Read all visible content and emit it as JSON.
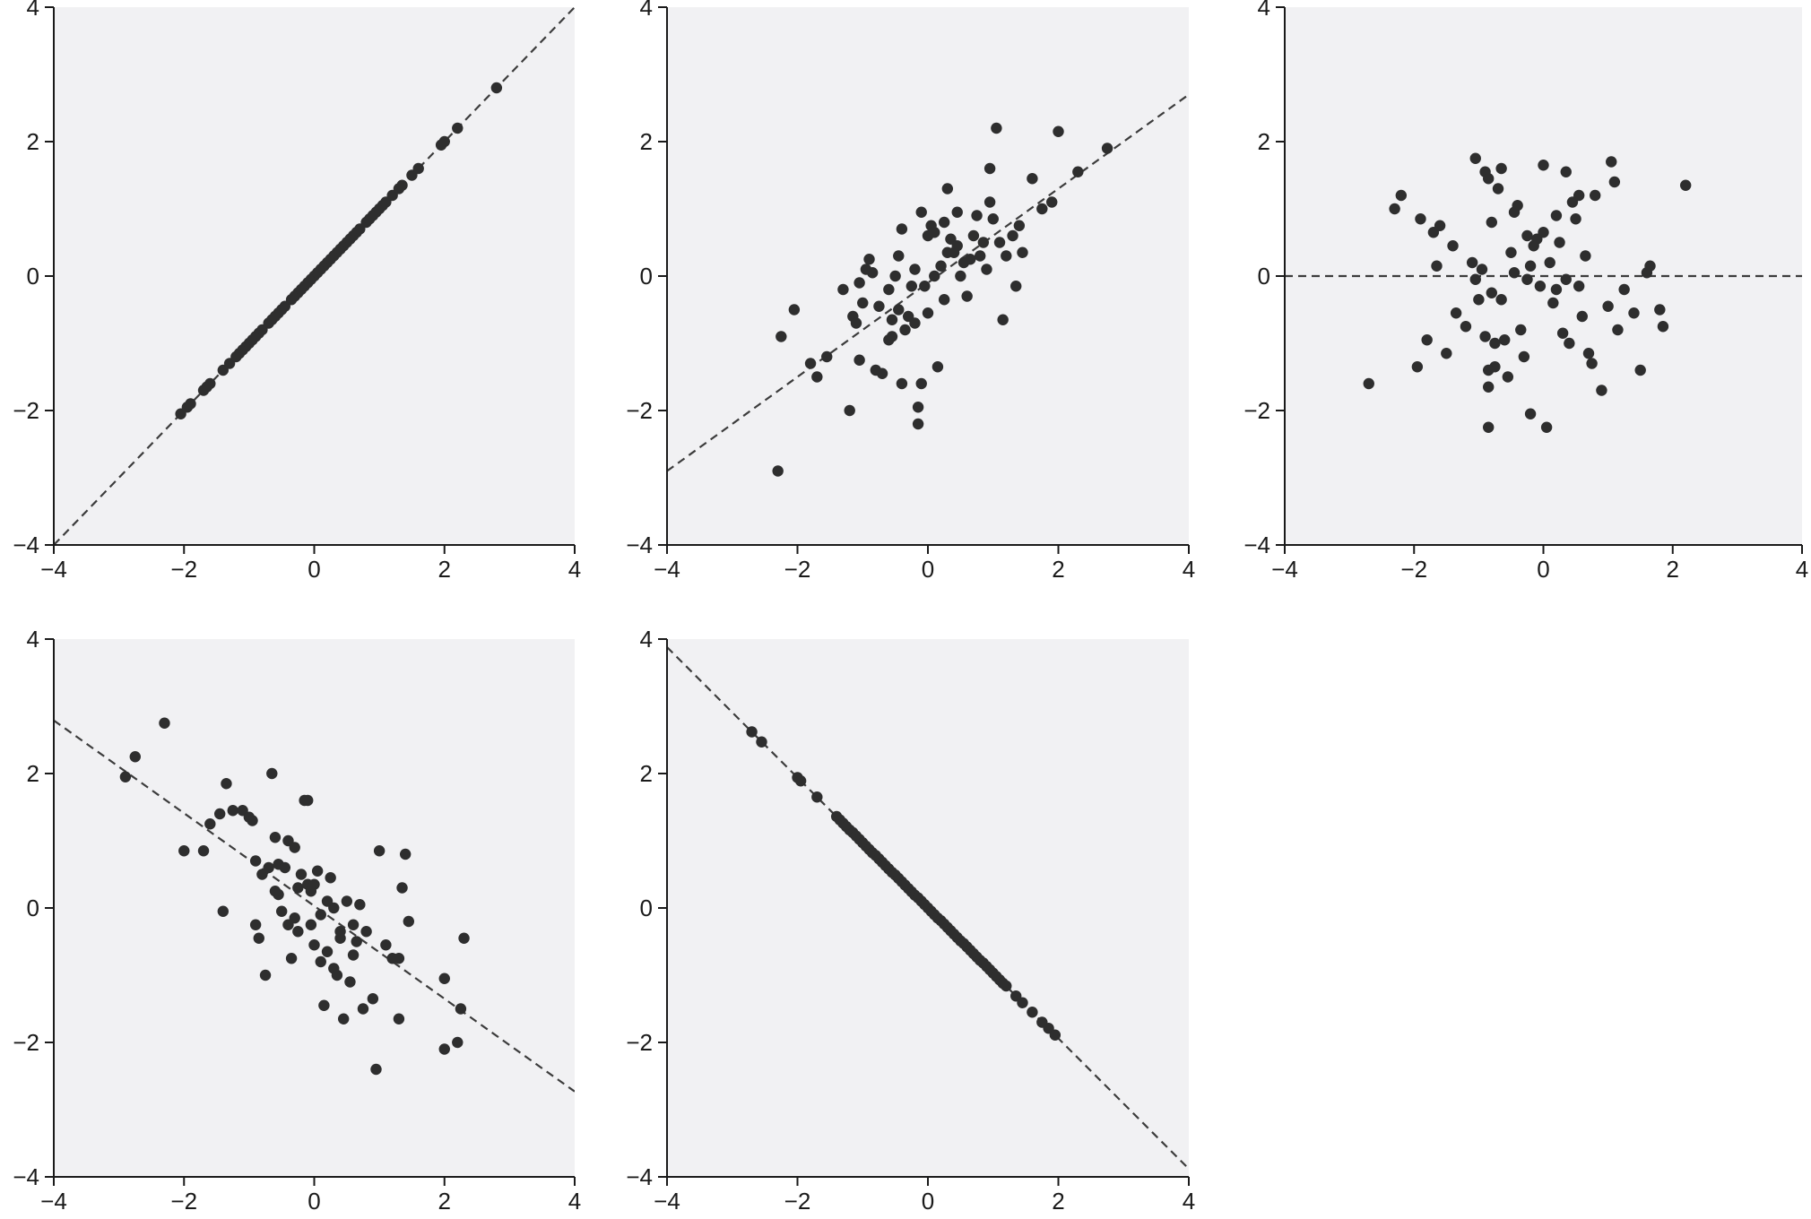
{
  "figure": {
    "background_color": "#ffffff",
    "panel_color": "#f1f1f3",
    "point_color": "#2e2e2e",
    "line_color": "#3c3c3c",
    "axis_color": "#1a1a1a"
  },
  "chart_data": [
    {
      "type": "scatter",
      "title": "",
      "xlabel": "",
      "ylabel": "",
      "xlim": [
        -4,
        4
      ],
      "ylim": [
        -4,
        4
      ],
      "xticks": [
        "−4",
        "−2",
        "0",
        "2",
        "4"
      ],
      "yticks": [
        "−4",
        "−2",
        "0",
        "2",
        "4"
      ],
      "grid": false,
      "fit_line": {
        "slope": 1.0,
        "intercept": 0.0,
        "style": "dashed"
      },
      "x": [
        -2.05,
        -1.95,
        -1.9,
        -1.7,
        -1.65,
        -1.6,
        -1.4,
        -1.3,
        -1.2,
        -1.15,
        -1.1,
        -1.05,
        -1.0,
        -0.95,
        -0.9,
        -0.85,
        -0.8,
        -0.7,
        -0.65,
        -0.6,
        -0.55,
        -0.5,
        -0.45,
        -0.35,
        -0.3,
        -0.25,
        -0.2,
        -0.15,
        -0.1,
        -0.05,
        0.0,
        0.05,
        0.1,
        0.15,
        0.2,
        0.25,
        0.3,
        0.35,
        0.4,
        0.45,
        0.5,
        0.55,
        0.6,
        0.65,
        0.7,
        0.8,
        0.85,
        0.9,
        0.95,
        1.0,
        1.05,
        1.1,
        1.2,
        1.3,
        1.35,
        1.5,
        1.6,
        1.95,
        2.0,
        2.2,
        2.8
      ],
      "y": [
        -2.05,
        -1.95,
        -1.9,
        -1.7,
        -1.65,
        -1.6,
        -1.4,
        -1.3,
        -1.2,
        -1.15,
        -1.1,
        -1.05,
        -1.0,
        -0.95,
        -0.9,
        -0.85,
        -0.8,
        -0.7,
        -0.65,
        -0.6,
        -0.55,
        -0.5,
        -0.45,
        -0.35,
        -0.3,
        -0.25,
        -0.2,
        -0.15,
        -0.1,
        -0.05,
        0.0,
        0.05,
        0.1,
        0.15,
        0.2,
        0.25,
        0.3,
        0.35,
        0.4,
        0.45,
        0.5,
        0.55,
        0.6,
        0.65,
        0.7,
        0.8,
        0.85,
        0.9,
        0.95,
        1.0,
        1.05,
        1.1,
        1.2,
        1.3,
        1.35,
        1.5,
        1.6,
        1.95,
        2.0,
        2.2,
        2.8
      ]
    },
    {
      "type": "scatter",
      "title": "",
      "xlabel": "",
      "ylabel": "",
      "xlim": [
        -4,
        4
      ],
      "ylim": [
        -4,
        4
      ],
      "xticks": [
        "−4",
        "−2",
        "0",
        "2",
        "4"
      ],
      "yticks": [
        "−4",
        "−2",
        "0",
        "2",
        "4"
      ],
      "grid": false,
      "fit_line": {
        "slope": 0.7,
        "intercept": -0.1,
        "style": "dashed"
      },
      "x": [
        -2.3,
        -2.25,
        -2.05,
        -1.8,
        -1.7,
        -1.55,
        -1.3,
        -1.2,
        -1.15,
        -1.1,
        -1.05,
        -1.0,
        -0.95,
        -0.9,
        -0.8,
        -0.75,
        -0.7,
        -0.6,
        -0.55,
        -0.55,
        -0.5,
        -0.45,
        -0.4,
        -0.4,
        -0.35,
        -0.3,
        -0.25,
        -0.2,
        -0.15,
        -0.15,
        -0.1,
        -0.1,
        -0.05,
        0.0,
        0.0,
        0.05,
        0.1,
        0.15,
        0.2,
        0.25,
        0.3,
        0.3,
        0.35,
        0.4,
        0.45,
        0.5,
        0.55,
        0.6,
        0.7,
        0.75,
        0.8,
        0.85,
        0.9,
        0.95,
        1.0,
        1.05,
        1.1,
        1.15,
        1.2,
        1.3,
        1.35,
        1.45,
        1.6,
        1.75,
        1.9,
        2.0,
        2.3,
        2.75,
        -0.6,
        -0.2,
        0.1,
        0.45,
        0.95,
        -1.05,
        0.65,
        1.4,
        -0.45,
        -0.85,
        0.25
      ],
      "y": [
        -2.9,
        -0.9,
        -0.5,
        -1.3,
        -1.5,
        -1.2,
        -0.2,
        -2.0,
        -0.6,
        -0.7,
        -1.25,
        -0.4,
        0.1,
        0.25,
        -1.4,
        -0.45,
        -1.45,
        -0.2,
        -0.65,
        -0.9,
        0.0,
        -0.5,
        -1.6,
        0.7,
        -0.8,
        -0.6,
        -0.15,
        -0.7,
        -2.2,
        -1.95,
        -1.6,
        0.95,
        -0.15,
        0.6,
        -0.55,
        0.75,
        0.0,
        -1.35,
        0.15,
        0.8,
        0.35,
        1.3,
        0.55,
        0.35,
        0.45,
        0.0,
        0.2,
        -0.3,
        0.6,
        0.9,
        0.3,
        0.5,
        0.1,
        1.6,
        0.85,
        2.2,
        0.5,
        -0.65,
        0.3,
        0.6,
        -0.15,
        0.35,
        1.45,
        1.0,
        1.1,
        2.15,
        1.55,
        1.9,
        -0.95,
        0.1,
        0.65,
        0.95,
        1.1,
        -0.1,
        0.25,
        0.75,
        0.3,
        0.05,
        -0.35
      ]
    },
    {
      "type": "scatter",
      "title": "",
      "xlabel": "",
      "ylabel": "",
      "xlim": [
        -4,
        4
      ],
      "ylim": [
        -4,
        4
      ],
      "xticks": [
        "−4",
        "−2",
        "0",
        "2",
        "4"
      ],
      "yticks": [
        "−4",
        "−2",
        "0",
        "2",
        "4"
      ],
      "grid": false,
      "fit_line": {
        "slope": 0.0,
        "intercept": 0.0,
        "style": "dashed"
      },
      "x": [
        -2.7,
        -2.3,
        -2.2,
        -1.95,
        -1.9,
        -1.8,
        -1.7,
        -1.65,
        -1.6,
        -1.5,
        -1.4,
        -1.35,
        -1.2,
        -1.1,
        -1.05,
        -1.0,
        -0.95,
        -0.9,
        -0.9,
        -0.85,
        -0.85,
        -0.8,
        -0.8,
        -0.75,
        -0.75,
        -0.7,
        -0.65,
        -0.6,
        -0.55,
        -0.5,
        -0.45,
        -0.4,
        -0.35,
        -0.3,
        -0.25,
        -0.2,
        -0.2,
        -0.15,
        -0.1,
        -0.05,
        0.0,
        0.0,
        0.05,
        0.1,
        0.15,
        0.2,
        0.2,
        0.25,
        0.3,
        0.35,
        0.4,
        0.45,
        0.5,
        0.55,
        0.6,
        0.65,
        0.7,
        0.75,
        0.8,
        0.9,
        1.0,
        1.05,
        1.1,
        1.15,
        1.25,
        1.4,
        1.5,
        1.6,
        1.65,
        1.8,
        1.85,
        2.2,
        -1.05,
        -0.85,
        0.35,
        0.55,
        -0.45,
        -0.25,
        -0.85,
        -0.65
      ],
      "y": [
        -1.6,
        1.0,
        1.2,
        -1.35,
        0.85,
        -0.95,
        0.65,
        0.15,
        0.75,
        -1.15,
        0.45,
        -0.55,
        -0.75,
        0.2,
        1.75,
        -0.35,
        0.1,
        -0.9,
        1.55,
        1.45,
        -1.65,
        0.8,
        -0.25,
        -1.0,
        -1.35,
        1.3,
        1.6,
        -0.95,
        -1.5,
        0.35,
        0.95,
        1.05,
        -0.8,
        -1.2,
        0.6,
        0.15,
        -2.05,
        0.45,
        0.55,
        -0.15,
        1.65,
        0.65,
        -2.25,
        0.2,
        -0.4,
        0.9,
        -0.2,
        0.5,
        -0.85,
        1.55,
        -1.0,
        1.1,
        0.85,
        1.2,
        -0.6,
        0.3,
        -1.15,
        -1.3,
        1.2,
        -1.7,
        -0.45,
        1.7,
        1.4,
        -0.8,
        -0.2,
        -0.55,
        -1.4,
        0.05,
        0.15,
        -0.5,
        -0.75,
        1.35,
        -0.05,
        -2.25,
        -0.05,
        -0.15,
        0.05,
        -0.05,
        -1.4,
        -0.35
      ]
    },
    {
      "type": "scatter",
      "title": "",
      "xlabel": "",
      "ylabel": "",
      "xlim": [
        -4,
        4
      ],
      "ylim": [
        -4,
        4
      ],
      "xticks": [
        "−4",
        "−2",
        "0",
        "2",
        "4"
      ],
      "yticks": [
        "−4",
        "−2",
        "0",
        "2",
        "4"
      ],
      "grid": false,
      "fit_line": {
        "slope": -0.69,
        "intercept": 0.03,
        "style": "dashed"
      },
      "x": [
        -2.9,
        -2.75,
        -2.3,
        -2.0,
        -1.7,
        -1.6,
        -1.45,
        -1.4,
        -1.35,
        -1.25,
        -1.1,
        -1.0,
        -0.95,
        -0.9,
        -0.9,
        -0.85,
        -0.8,
        -0.75,
        -0.7,
        -0.65,
        -0.6,
        -0.55,
        -0.55,
        -0.5,
        -0.45,
        -0.4,
        -0.4,
        -0.35,
        -0.3,
        -0.25,
        -0.25,
        -0.2,
        -0.15,
        -0.1,
        -0.1,
        -0.05,
        0.0,
        0.0,
        0.05,
        0.1,
        0.15,
        0.2,
        0.25,
        0.3,
        0.3,
        0.35,
        0.4,
        0.45,
        0.5,
        0.55,
        0.6,
        0.65,
        0.7,
        0.75,
        0.8,
        0.9,
        0.95,
        1.0,
        1.1,
        1.2,
        1.3,
        1.35,
        1.4,
        1.45,
        2.0,
        2.0,
        2.2,
        2.3,
        2.25,
        0.1,
        -0.05,
        0.4,
        -0.3,
        0.6,
        0.2,
        -0.6,
        1.3
      ],
      "y": [
        1.95,
        2.25,
        2.75,
        0.85,
        0.85,
        1.25,
        1.4,
        -0.05,
        1.85,
        1.45,
        1.45,
        1.35,
        1.3,
        0.7,
        -0.25,
        -0.45,
        0.5,
        -1.0,
        0.6,
        2.0,
        1.05,
        0.65,
        0.2,
        -0.05,
        0.6,
        1.0,
        -0.25,
        -0.75,
        0.9,
        0.3,
        -0.35,
        0.5,
        1.6,
        0.35,
        1.6,
        -0.25,
        0.35,
        -0.55,
        0.55,
        -0.8,
        -1.45,
        -0.65,
        0.45,
        -0.9,
        0.0,
        -1.0,
        -0.35,
        -1.65,
        0.1,
        -1.1,
        -0.25,
        -0.5,
        0.05,
        -1.5,
        -0.35,
        -1.35,
        -2.4,
        0.85,
        -0.55,
        -0.75,
        -1.65,
        0.3,
        0.8,
        -0.2,
        -2.1,
        -1.05,
        -2.0,
        -0.45,
        -1.5,
        -0.1,
        0.25,
        -0.45,
        -0.15,
        -0.7,
        0.1,
        0.25,
        -0.75
      ]
    },
    {
      "type": "scatter",
      "title": "",
      "xlabel": "",
      "ylabel": "",
      "xlim": [
        -4,
        4
      ],
      "ylim": [
        -4,
        4
      ],
      "xticks": [
        "−4",
        "−2",
        "0",
        "2",
        "4"
      ],
      "yticks": [
        "−4",
        "−2",
        "0",
        "2",
        "4"
      ],
      "grid": false,
      "fit_line": {
        "slope": -0.97,
        "intercept": 0.0,
        "style": "dashed"
      },
      "x": [
        -2.7,
        -2.55,
        -2.0,
        -1.95,
        -1.7,
        -1.4,
        -1.35,
        -1.3,
        -1.25,
        -1.2,
        -1.15,
        -1.1,
        -1.05,
        -1.0,
        -0.95,
        -0.9,
        -0.85,
        -0.8,
        -0.75,
        -0.7,
        -0.65,
        -0.6,
        -0.55,
        -0.5,
        -0.45,
        -0.4,
        -0.35,
        -0.3,
        -0.25,
        -0.2,
        -0.15,
        -0.1,
        -0.05,
        0.0,
        0.05,
        0.1,
        0.15,
        0.2,
        0.25,
        0.3,
        0.35,
        0.4,
        0.45,
        0.5,
        0.55,
        0.6,
        0.65,
        0.7,
        0.75,
        0.8,
        0.85,
        0.9,
        0.95,
        1.0,
        1.05,
        1.1,
        1.15,
        1.2,
        1.35,
        1.45,
        1.6,
        1.75,
        1.85,
        1.95
      ],
      "y": [
        2.62,
        2.47,
        1.94,
        1.89,
        1.65,
        1.36,
        1.31,
        1.26,
        1.21,
        1.16,
        1.12,
        1.07,
        1.02,
        0.97,
        0.92,
        0.87,
        0.82,
        0.78,
        0.73,
        0.68,
        0.63,
        0.58,
        0.53,
        0.49,
        0.44,
        0.39,
        0.34,
        0.29,
        0.24,
        0.19,
        0.15,
        0.1,
        0.05,
        0.0,
        -0.05,
        -0.1,
        -0.15,
        -0.19,
        -0.24,
        -0.29,
        -0.34,
        -0.39,
        -0.44,
        -0.49,
        -0.53,
        -0.58,
        -0.63,
        -0.68,
        -0.73,
        -0.78,
        -0.82,
        -0.87,
        -0.92,
        -0.97,
        -1.02,
        -1.07,
        -1.12,
        -1.16,
        -1.31,
        -1.41,
        -1.55,
        -1.7,
        -1.79,
        -1.89
      ]
    }
  ]
}
